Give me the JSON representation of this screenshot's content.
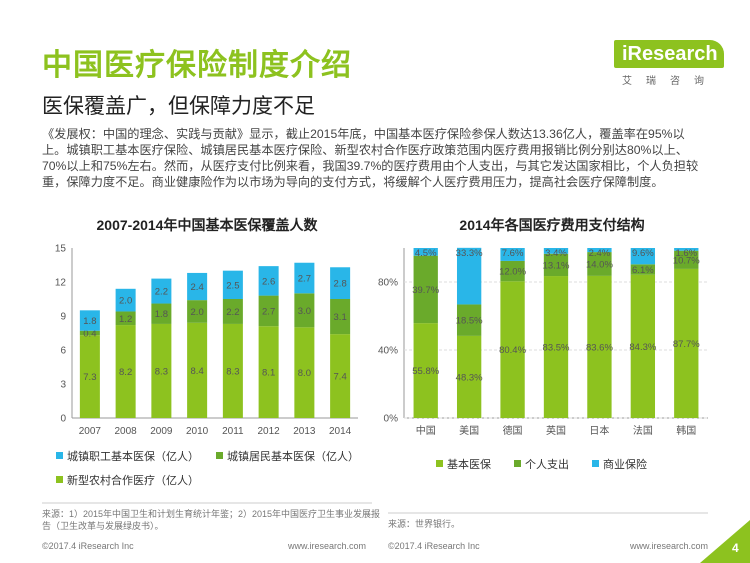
{
  "title": "中国医疗保险制度介绍",
  "logo": {
    "mark": "iResearch",
    "sub": "艾瑞咨询"
  },
  "subtitle": "医保覆盖广，但保障力度不足",
  "paragraph": "《发展权：中国的理念、实践与贡献》显示，截止2015年底，中国基本医疗保险参保人数达13.36亿人，覆盖率在95%以上。城镇职工基本医疗保险、城镇居民基本医疗保险、新型农村合作医疗政策范围内医疗费用报销比例分别达80%以上、70%以上和75%左右。然而，从医疗支付比例来看，我国39.7%的医疗费用由个人支出，与其它发达国家相比，个人负担较重，保障力度不足。商业健康险作为以市场为导向的支付方式，将缓解个人医疗费用压力，提高社会医疗保障制度。",
  "chart_data": [
    {
      "type": "bar",
      "title": "2007-2014年中国基本医保覆盖人数",
      "categories": [
        "2007",
        "2008",
        "2009",
        "2010",
        "2011",
        "2012",
        "2013",
        "2014"
      ],
      "ylim": [
        0,
        15
      ],
      "yticks": [
        "0",
        "3",
        "6",
        "9",
        "12",
        "15"
      ],
      "stacked": true,
      "series": [
        {
          "name": "新型农村合作医疗（亿人）",
          "color": "#8dc21f",
          "values": [
            7.3,
            8.2,
            8.3,
            8.4,
            8.3,
            8.1,
            8.0,
            7.4
          ],
          "labels": [
            "7.3",
            "8.2",
            "8.3",
            "8.4",
            "8.3",
            "8.1",
            "8.0",
            "7.4"
          ]
        },
        {
          "name": "城镇居民基本医保（亿人）",
          "color": "#6aaa2b",
          "values": [
            0.4,
            1.2,
            1.8,
            2.0,
            2.2,
            2.7,
            3.0,
            3.1
          ],
          "labels": [
            "0.4",
            "1.2",
            "1.8",
            "2.0",
            "2.2",
            "2.7",
            "3.0",
            "3.1"
          ]
        },
        {
          "name": "城镇职工基本医保（亿人）",
          "color": "#29b6e8",
          "values": [
            1.8,
            2.0,
            2.2,
            2.4,
            2.5,
            2.6,
            2.7,
            2.8
          ],
          "labels": [
            "1.8",
            "2.0",
            "2.2",
            "2.4",
            "2.5",
            "2.6",
            "2.7",
            "2.8"
          ]
        }
      ],
      "legend": "bottom",
      "grid": false
    },
    {
      "type": "bar",
      "title": "2014年各国医疗费用支付结构",
      "categories": [
        "中国",
        "美国",
        "德国",
        "英国",
        "日本",
        "法国",
        "韩国"
      ],
      "ylim": [
        0,
        100
      ],
      "yticks": [
        "0%",
        "40%",
        "80%"
      ],
      "stacked": true,
      "series": [
        {
          "name": "基本医保",
          "color": "#8dc21f",
          "values": [
            55.8,
            48.3,
            80.4,
            83.5,
            83.6,
            84.3,
            87.7
          ],
          "labels": [
            "55.8%",
            "48.3%",
            "80.4%",
            "83.5%",
            "83.6%",
            "84.3%",
            "87.7%"
          ]
        },
        {
          "name": "个人支出",
          "color": "#6aaa2b",
          "values": [
            39.7,
            18.5,
            12.0,
            13.1,
            14.0,
            6.1,
            10.7
          ],
          "labels": [
            "39.7%",
            "18.5%",
            "12.0%",
            "13.1%",
            "14.0%",
            "6.1%",
            "10.7%"
          ]
        },
        {
          "name": "商业保险",
          "color": "#29b6e8",
          "values": [
            4.5,
            33.3,
            7.6,
            3.4,
            2.4,
            9.6,
            1.6
          ],
          "labels": [
            "4.5%",
            "33.3%",
            "7.6%",
            "3.4%",
            "2.4%",
            "9.6%",
            "1.6%"
          ]
        }
      ],
      "legend": "bottom",
      "grid": true
    }
  ],
  "legend_left": [
    "城镇职工基本医保（亿人）",
    "城镇居民基本医保（亿人）",
    "新型农村合作医疗（亿人）"
  ],
  "legend_right": [
    "基本医保",
    "个人支出",
    "商业保险"
  ],
  "source_left": "来源：1）2015年中国卫生和计划生育统计年鉴；2）2015年中国医疗卫生事业发展报告（卫生改革与发展绿皮书）。",
  "source_right": "来源：世界银行。",
  "footer_left_1": "©2017.4 iResearch Inc",
  "footer_left_2": "www.iresearch.com",
  "footer_right_1": "©2017.4 iResearch Inc",
  "footer_right_2": "www.iresearch.com",
  "page_number": "4"
}
